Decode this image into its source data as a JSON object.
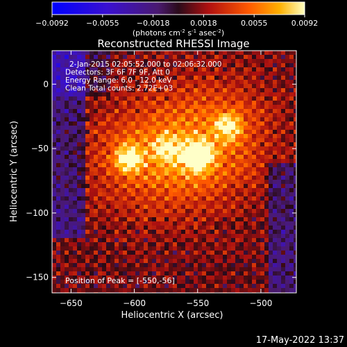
{
  "colorbar": {
    "ticks": [
      "-0.0092",
      "-0.0055",
      "-0.0018",
      "0.0018",
      "0.0055",
      "0.0092"
    ],
    "units_prefix": "(photons cm",
    "units_exp1": "-2",
    "units_mid": " s",
    "units_exp2": "-1",
    "units_mid2": " asec",
    "units_exp3": "-2",
    "units_suffix": ")"
  },
  "chart_data": {
    "type": "heatmap",
    "title": "Reconstructed RHESSI Image",
    "xlabel": "Heliocentric X (arcsec)",
    "ylabel": "Heliocentric Y (arcsec)",
    "xlim": [
      -665,
      -472
    ],
    "ylim": [
      -162,
      26
    ],
    "x_ticks": [
      -650,
      -600,
      -550,
      -500
    ],
    "y_ticks": [
      0,
      -50,
      -100,
      -150
    ],
    "x_tick_labels": [
      "−650",
      "−600",
      "−550",
      "−500"
    ],
    "y_tick_labels": [
      "0",
      "−50",
      "−100",
      "−150"
    ],
    "color_range": [
      -0.0092,
      0.0092
    ],
    "annotations": [
      "2-Jan-2015 02:05:52.000 to 02:06:32.000",
      "Detectors: 3F 6F 7F 9F, Att 0",
      "Energy Range: 6.0 - 12.0 keV",
      "Clean     Total counts: 2.72E+03"
    ],
    "peak_label": "Position of Peak = [-550,-56]",
    "sources": [
      {
        "x": -550,
        "y": -56,
        "value": 0.0092
      },
      {
        "x": -605,
        "y": -58,
        "value": 0.007
      },
      {
        "x": -525,
        "y": -32,
        "value": 0.0058
      },
      {
        "x": -575,
        "y": -50,
        "value": 0.004
      }
    ]
  },
  "footer": {
    "timestamp": "17-May-2022 13:37"
  }
}
